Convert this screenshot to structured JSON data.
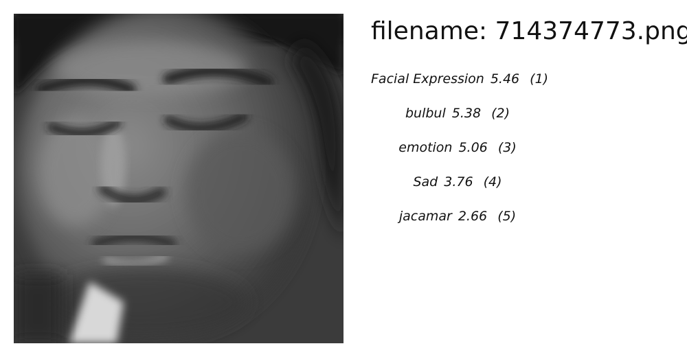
{
  "image": {
    "subject": "grayscale close-up of a face with downcast eyes"
  },
  "filename_prefix": "filename:",
  "filename": "714374773.png",
  "predictions": [
    {
      "label": "Facial Expression",
      "score": "5.46",
      "rank": "(1)"
    },
    {
      "label": "bulbul",
      "score": "5.38",
      "rank": "(2)"
    },
    {
      "label": "emotion",
      "score": "5.06",
      "rank": "(3)"
    },
    {
      "label": "Sad",
      "score": "3.76",
      "rank": "(4)"
    },
    {
      "label": "jacamar",
      "score": "2.66",
      "rank": "(5)"
    }
  ]
}
